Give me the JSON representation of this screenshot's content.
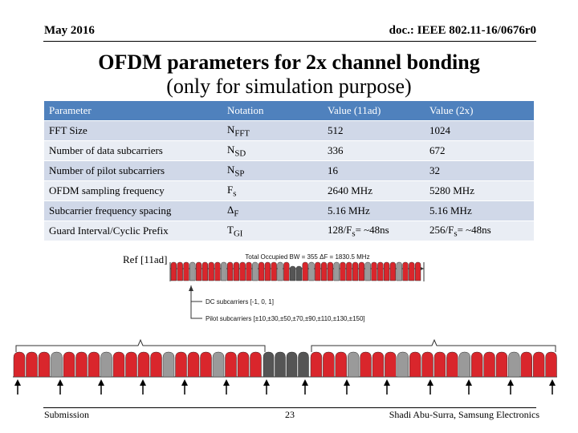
{
  "header": {
    "date": "May 2016",
    "doc_id": "doc.: IEEE 802.11-16/0676r0"
  },
  "title": {
    "line1": "OFDM parameters for 2x channel bonding",
    "line2": "(only for simulation purpose)"
  },
  "table": {
    "headers": [
      "Parameter",
      "Notation",
      "Value (11ad)",
      "Value (2x)"
    ],
    "rows": [
      {
        "param": "FFT Size",
        "sym": "N",
        "sub": "FFT",
        "v1": "512",
        "v2": "1024"
      },
      {
        "param": "Number of data subcarriers",
        "sym": "N",
        "sub": "SD",
        "v1": "336",
        "v2": "672"
      },
      {
        "param": "Number of pilot subcarriers",
        "sym": "N",
        "sub": "SP",
        "v1": "16",
        "v2": "32"
      },
      {
        "param": "OFDM sampling frequency",
        "sym": "F",
        "sub": "s",
        "v1": "2640 MHz",
        "v2": "5280 MHz"
      },
      {
        "param": "Subcarrier frequency spacing",
        "sym": "Δ",
        "sub": "F",
        "v1": "5.16  MHz",
        "v2": "5.16 MHz"
      },
      {
        "param": "Guard Interval/Cyclic Prefix",
        "sym": "T",
        "sub": "GI",
        "v1a": "128/F",
        "v1b": "s",
        "v1c": "= ~48ns",
        "v2a": "256/F",
        "v2b": "s",
        "v2c": "= ~48ns"
      }
    ]
  },
  "reference": "Ref [11ad]",
  "diagram": {
    "bw_label": "Total Occupied BW = 355 ΔF = 1830.5 MHz",
    "dc_label": "DC subcarriers [-1, 0, 1]",
    "pilot_label": "Pilot subcarriers [±10,±30,±50,±70,±90,±110,±130,±150]",
    "colors": {
      "data": "#d9262c",
      "pilot": "#9a9a9a",
      "dc": "#555555"
    }
  },
  "footer": {
    "left": "Submission",
    "page": "23",
    "author": "Shadi Abu-Surra, Samsung Electronics"
  }
}
